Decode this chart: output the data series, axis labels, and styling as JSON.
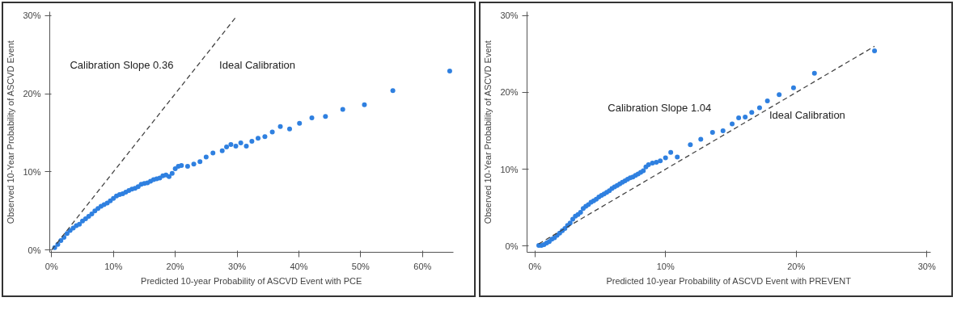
{
  "chart_data": [
    {
      "type": "scatter",
      "xlabel": "Predicted 10-year Probability of ASCVD Event with PCE",
      "ylabel": "Observed 10-Year Probability of ASCVD Event",
      "marker": "circle",
      "grid": false,
      "xlim": [
        -0.3,
        65
      ],
      "ylim": [
        -0.3,
        30.5
      ],
      "xticks": [
        {
          "value": 0,
          "label": "0%"
        },
        {
          "value": 10,
          "label": "10%"
        },
        {
          "value": 20,
          "label": "20%"
        },
        {
          "value": 30,
          "label": "30%"
        },
        {
          "value": 40,
          "label": "40%"
        },
        {
          "value": 50,
          "label": "50%"
        },
        {
          "value": 60,
          "label": "60%"
        }
      ],
      "yticks": [
        {
          "value": 0,
          "label": "0%"
        },
        {
          "value": 10,
          "label": "10%"
        },
        {
          "value": 20,
          "label": "20%"
        },
        {
          "value": 30,
          "label": "30%"
        }
      ],
      "annotations": [
        "Calibration Slope 0.36",
        "Ideal Calibration"
      ],
      "series": [
        {
          "color": "#2f80e0",
          "x": [
            0.5,
            1,
            1.5,
            2,
            2.5,
            3,
            3.5,
            4,
            4.5,
            5,
            5.5,
            6,
            6.5,
            7,
            7.5,
            8,
            8.5,
            9,
            9.5,
            10,
            10.5,
            11,
            11.5,
            12,
            12.5,
            13,
            13.5,
            14,
            14.5,
            15,
            15.5,
            16,
            16.5,
            17,
            17.5,
            18,
            18.5,
            19,
            19.5,
            20,
            20.5,
            21,
            22,
            23,
            24,
            25,
            26.1,
            27.6,
            28.3,
            29,
            29.8,
            30.6,
            31.5,
            32.4,
            33.4,
            34.5,
            35.7,
            37,
            38.5,
            40.1,
            42.1,
            44.3,
            47.1,
            50.6,
            55.2,
            64.4
          ],
          "values": [
            0.3,
            0.7,
            1.2,
            1.6,
            2.1,
            2.5,
            2.8,
            3.1,
            3.3,
            3.7,
            4,
            4.3,
            4.6,
            5,
            5.3,
            5.6,
            5.8,
            6,
            6.3,
            6.6,
            6.9,
            7.1,
            7.2,
            7.4,
            7.6,
            7.8,
            7.9,
            8.1,
            8.4,
            8.5,
            8.6,
            8.8,
            9,
            9.1,
            9.2,
            9.5,
            9.6,
            9.4,
            9.8,
            10.4,
            10.7,
            10.8,
            10.7,
            11,
            11.3,
            11.9,
            12.4,
            12.7,
            13.2,
            13.5,
            13.3,
            13.7,
            13.3,
            13.9,
            14.3,
            14.5,
            15.1,
            15.8,
            15.5,
            16.2,
            16.9,
            17.1,
            18,
            18.6,
            20.4,
            22.9
          ]
        },
        {
          "type": "line",
          "color": "#444444",
          "line_style": "dashed",
          "marker": "none",
          "x": [
            0,
            30
          ],
          "values": [
            0,
            30
          ]
        }
      ]
    },
    {
      "type": "scatter",
      "xlabel": "Predicted 10-year Probability of ASCVD Event with PREVENT",
      "ylabel": "Observed 10-Year Probability of ASCVD Event",
      "marker": "circle",
      "grid": false,
      "xlim": [
        -0.6,
        30.3
      ],
      "ylim": [
        -0.8,
        30.5
      ],
      "xticks": [
        {
          "value": 0,
          "label": "0%"
        },
        {
          "value": 10,
          "label": "10%"
        },
        {
          "value": 20,
          "label": "20%"
        },
        {
          "value": 30,
          "label": "30%"
        }
      ],
      "yticks": [
        {
          "value": 0,
          "label": "0%"
        },
        {
          "value": 10,
          "label": "10%"
        },
        {
          "value": 20,
          "label": "20%"
        },
        {
          "value": 30,
          "label": "30%"
        }
      ],
      "annotations": [
        "Calibration Slope 1.04",
        "Ideal Calibration"
      ],
      "series": [
        {
          "color": "#2f80e0",
          "x": [
            0.3,
            0.5,
            0.7,
            0.9,
            1.1,
            1.3,
            1.5,
            1.7,
            1.9,
            2.1,
            2.3,
            2.5,
            2.7,
            2.9,
            3.1,
            3.3,
            3.5,
            3.7,
            3.9,
            4.1,
            4.3,
            4.5,
            4.7,
            4.9,
            5.1,
            5.3,
            5.5,
            5.7,
            5.9,
            6.1,
            6.3,
            6.5,
            6.7,
            6.9,
            7.1,
            7.3,
            7.5,
            7.7,
            7.9,
            8.1,
            8.3,
            8.5,
            8.7,
            9,
            9.3,
            9.6,
            10,
            10.4,
            10.9,
            11.9,
            12.7,
            13.6,
            14.4,
            15.1,
            15.6,
            16.1,
            16.6,
            17.2,
            17.8,
            18.7,
            19.8,
            21.4,
            26
          ],
          "values": [
            0.1,
            0.1,
            0.2,
            0.4,
            0.6,
            0.9,
            1.1,
            1.4,
            1.7,
            2,
            2.3,
            2.7,
            3,
            3.5,
            3.9,
            4.1,
            4.4,
            4.9,
            5.2,
            5.4,
            5.7,
            5.9,
            6.1,
            6.4,
            6.6,
            6.8,
            7,
            7.2,
            7.5,
            7.7,
            7.9,
            8.1,
            8.3,
            8.5,
            8.7,
            8.9,
            9,
            9.2,
            9.4,
            9.6,
            9.8,
            10.3,
            10.6,
            10.8,
            10.9,
            11.1,
            11.5,
            12.2,
            11.6,
            13.2,
            13.9,
            14.8,
            15,
            15.9,
            16.7,
            16.8,
            17.4,
            18,
            18.9,
            19.7,
            20.6,
            22.5,
            25.4
          ]
        },
        {
          "type": "line",
          "color": "#444444",
          "line_style": "dashed",
          "marker": "none",
          "x": [
            0.3,
            26
          ],
          "values": [
            0.3,
            26
          ]
        }
      ]
    }
  ]
}
